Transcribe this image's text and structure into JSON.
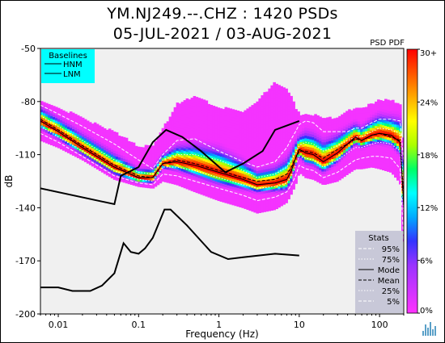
{
  "chart_data": {
    "type": "heatmap",
    "title": "YM.NJ249.--.CHZ : 1420 PSDs",
    "subtitle": "05-JUL-2021 / 03-AUG-2021",
    "xlabel": "Frequency (Hz)",
    "ylabel": "dB",
    "xscale": "log",
    "xlim": [
      0.006,
      200
    ],
    "ylim": [
      -200,
      -50
    ],
    "xticks": [
      {
        "value": 0.01,
        "label": "0.01"
      },
      {
        "value": 0.1,
        "label": "0.1"
      },
      {
        "value": 1,
        "label": "1"
      },
      {
        "value": 10,
        "label": "10"
      },
      {
        "value": 100,
        "label": "100"
      }
    ],
    "yticks": [
      {
        "value": -50,
        "label": "-50"
      },
      {
        "value": -80,
        "label": "-80"
      },
      {
        "value": -110,
        "label": "-110"
      },
      {
        "value": -140,
        "label": "-140"
      },
      {
        "value": -170,
        "label": "-170"
      },
      {
        "value": -200,
        "label": "-200"
      }
    ],
    "colorbar": {
      "label": "PSD PDF",
      "min": 0,
      "max": 30,
      "ticks": [
        {
          "value": 30,
          "label": "30+"
        },
        {
          "value": 24,
          "label": "24%"
        },
        {
          "value": 18,
          "label": "18%"
        },
        {
          "value": 12,
          "label": "12%"
        },
        {
          "value": 6,
          "label": "6%"
        },
        {
          "value": 0,
          "label": "0%"
        }
      ],
      "colors": [
        "#ff33ff",
        "#cc33ff",
        "#9933ff",
        "#3333ff",
        "#00aaff",
        "#00ffff",
        "#00ff66",
        "#aaff00",
        "#ffff00",
        "#ffaa00",
        "#ff5500",
        "#ff0000"
      ]
    },
    "baselines_legend": {
      "title": "Baselines",
      "entries": [
        {
          "label": "HNM"
        },
        {
          "label": "LNM"
        }
      ],
      "position": "top-left",
      "background": "#00ffff"
    },
    "stats_legend": {
      "title": "Stats",
      "entries": [
        {
          "label": "95%",
          "style": "dashed",
          "color": "#ffffff"
        },
        {
          "label": "75%",
          "style": "dotted",
          "color": "#ffffff"
        },
        {
          "label": "Mode",
          "style": "solid",
          "color": "#000000"
        },
        {
          "label": "Mean",
          "style": "dashed",
          "color": "#000000"
        },
        {
          "label": "25%",
          "style": "dotted",
          "color": "#ffffff"
        },
        {
          "label": "5%",
          "style": "dashed",
          "color": "#ffffff"
        }
      ],
      "position": "bottom-right"
    },
    "series": [
      {
        "name": "HNM",
        "color": "#000000",
        "x": [
          0.006,
          0.05,
          0.06,
          0.1,
          0.15,
          0.22,
          0.35,
          0.6,
          1.2,
          2.0,
          3.5,
          5,
          10
        ],
        "y": [
          -129,
          -138,
          -122,
          -117,
          -103,
          -96,
          -100,
          -108,
          -120,
          -115,
          -108,
          -96,
          -91
        ]
      },
      {
        "name": "LNM",
        "color": "#000000",
        "x": [
          0.006,
          0.01,
          0.015,
          0.025,
          0.035,
          0.05,
          0.065,
          0.08,
          0.1,
          0.12,
          0.15,
          0.21,
          0.25,
          0.4,
          0.8,
          1.3,
          2.0,
          5,
          10
        ],
        "y": [
          -185,
          -185,
          -187,
          -187,
          -184,
          -177,
          -160,
          -165,
          -166,
          -163,
          -157,
          -141,
          -141,
          -150,
          -165,
          -169,
          -168,
          -166,
          -167
        ]
      }
    ],
    "percentiles": {
      "x": [
        0.006,
        0.01,
        0.02,
        0.05,
        0.1,
        0.15,
        0.2,
        0.3,
        0.5,
        1,
        2,
        3,
        5,
        7,
        8,
        9,
        10,
        12,
        15,
        20,
        30,
        40,
        50,
        60,
        80,
        100,
        140,
        180,
        200
      ],
      "p95": [
        -82,
        -87,
        -94,
        -104,
        -113,
        -118,
        -110,
        -102,
        -101,
        -108,
        -114,
        -117,
        -114,
        -106,
        -101,
        -97,
        -93,
        -91,
        -92,
        -97,
        -97,
        -97,
        -95,
        -95,
        -92,
        -90,
        -90,
        -91,
        -114
      ],
      "p75": [
        -88,
        -94,
        -102,
        -113,
        -120,
        -121,
        -113,
        -110,
        -110,
        -113,
        -119,
        -123,
        -121,
        -117,
        -113,
        -109,
        -105,
        -103,
        -104,
        -108,
        -105,
        -102,
        -100,
        -100,
        -97,
        -95,
        -96,
        -98,
        -130
      ],
      "mode": [
        -91,
        -97,
        -106,
        -117,
        -123,
        -123,
        -115,
        -114,
        -116,
        -120,
        -124,
        -127,
        -126,
        -124,
        -119,
        -112,
        -107,
        -109,
        -110,
        -114,
        -109,
        -104,
        -100,
        -102,
        -99,
        -98,
        -99,
        -103,
        -140
      ],
      "mean": [
        -90,
        -96,
        -105,
        -116,
        -122,
        -123,
        -115,
        -113,
        -115,
        -119,
        -123,
        -125,
        -124,
        -121,
        -117,
        -112,
        -108,
        -108,
        -109,
        -112,
        -107,
        -104,
        -101,
        -102,
        -99,
        -98,
        -100,
        -102,
        -135
      ],
      "p25": [
        -94,
        -100,
        -108,
        -119,
        -124,
        -125,
        -117,
        -117,
        -119,
        -123,
        -127,
        -129,
        -128,
        -126,
        -122,
        -116,
        -111,
        -112,
        -113,
        -117,
        -113,
        -109,
        -106,
        -106,
        -104,
        -103,
        -104,
        -108,
        -145
      ],
      "p5": [
        -98,
        -103,
        -111,
        -122,
        -126,
        -127,
        -121,
        -122,
        -125,
        -129,
        -133,
        -136,
        -134,
        -131,
        -127,
        -122,
        -116,
        -118,
        -119,
        -123,
        -120,
        -116,
        -113,
        -112,
        -111,
        -111,
        -112,
        -118,
        -160
      ],
      "cloud_top": [
        -80,
        -84,
        -90,
        -98,
        -106,
        -106,
        -96,
        -82,
        -78,
        -84,
        -86,
        -80,
        -70,
        -74,
        -78,
        -84,
        -88,
        -88,
        -88,
        -90,
        -90,
        -86,
        -84,
        -84,
        -82,
        -80,
        -80,
        -82,
        -110
      ],
      "cloud_bottom": [
        -102,
        -106,
        -113,
        -124,
        -128,
        -129,
        -125,
        -127,
        -131,
        -136,
        -140,
        -143,
        -141,
        -137,
        -132,
        -127,
        -120,
        -123,
        -124,
        -127,
        -125,
        -121,
        -118,
        -118,
        -117,
        -118,
        -120,
        -126,
        -175
      ]
    },
    "grid": false,
    "legend": "top-left and bottom-right"
  }
}
